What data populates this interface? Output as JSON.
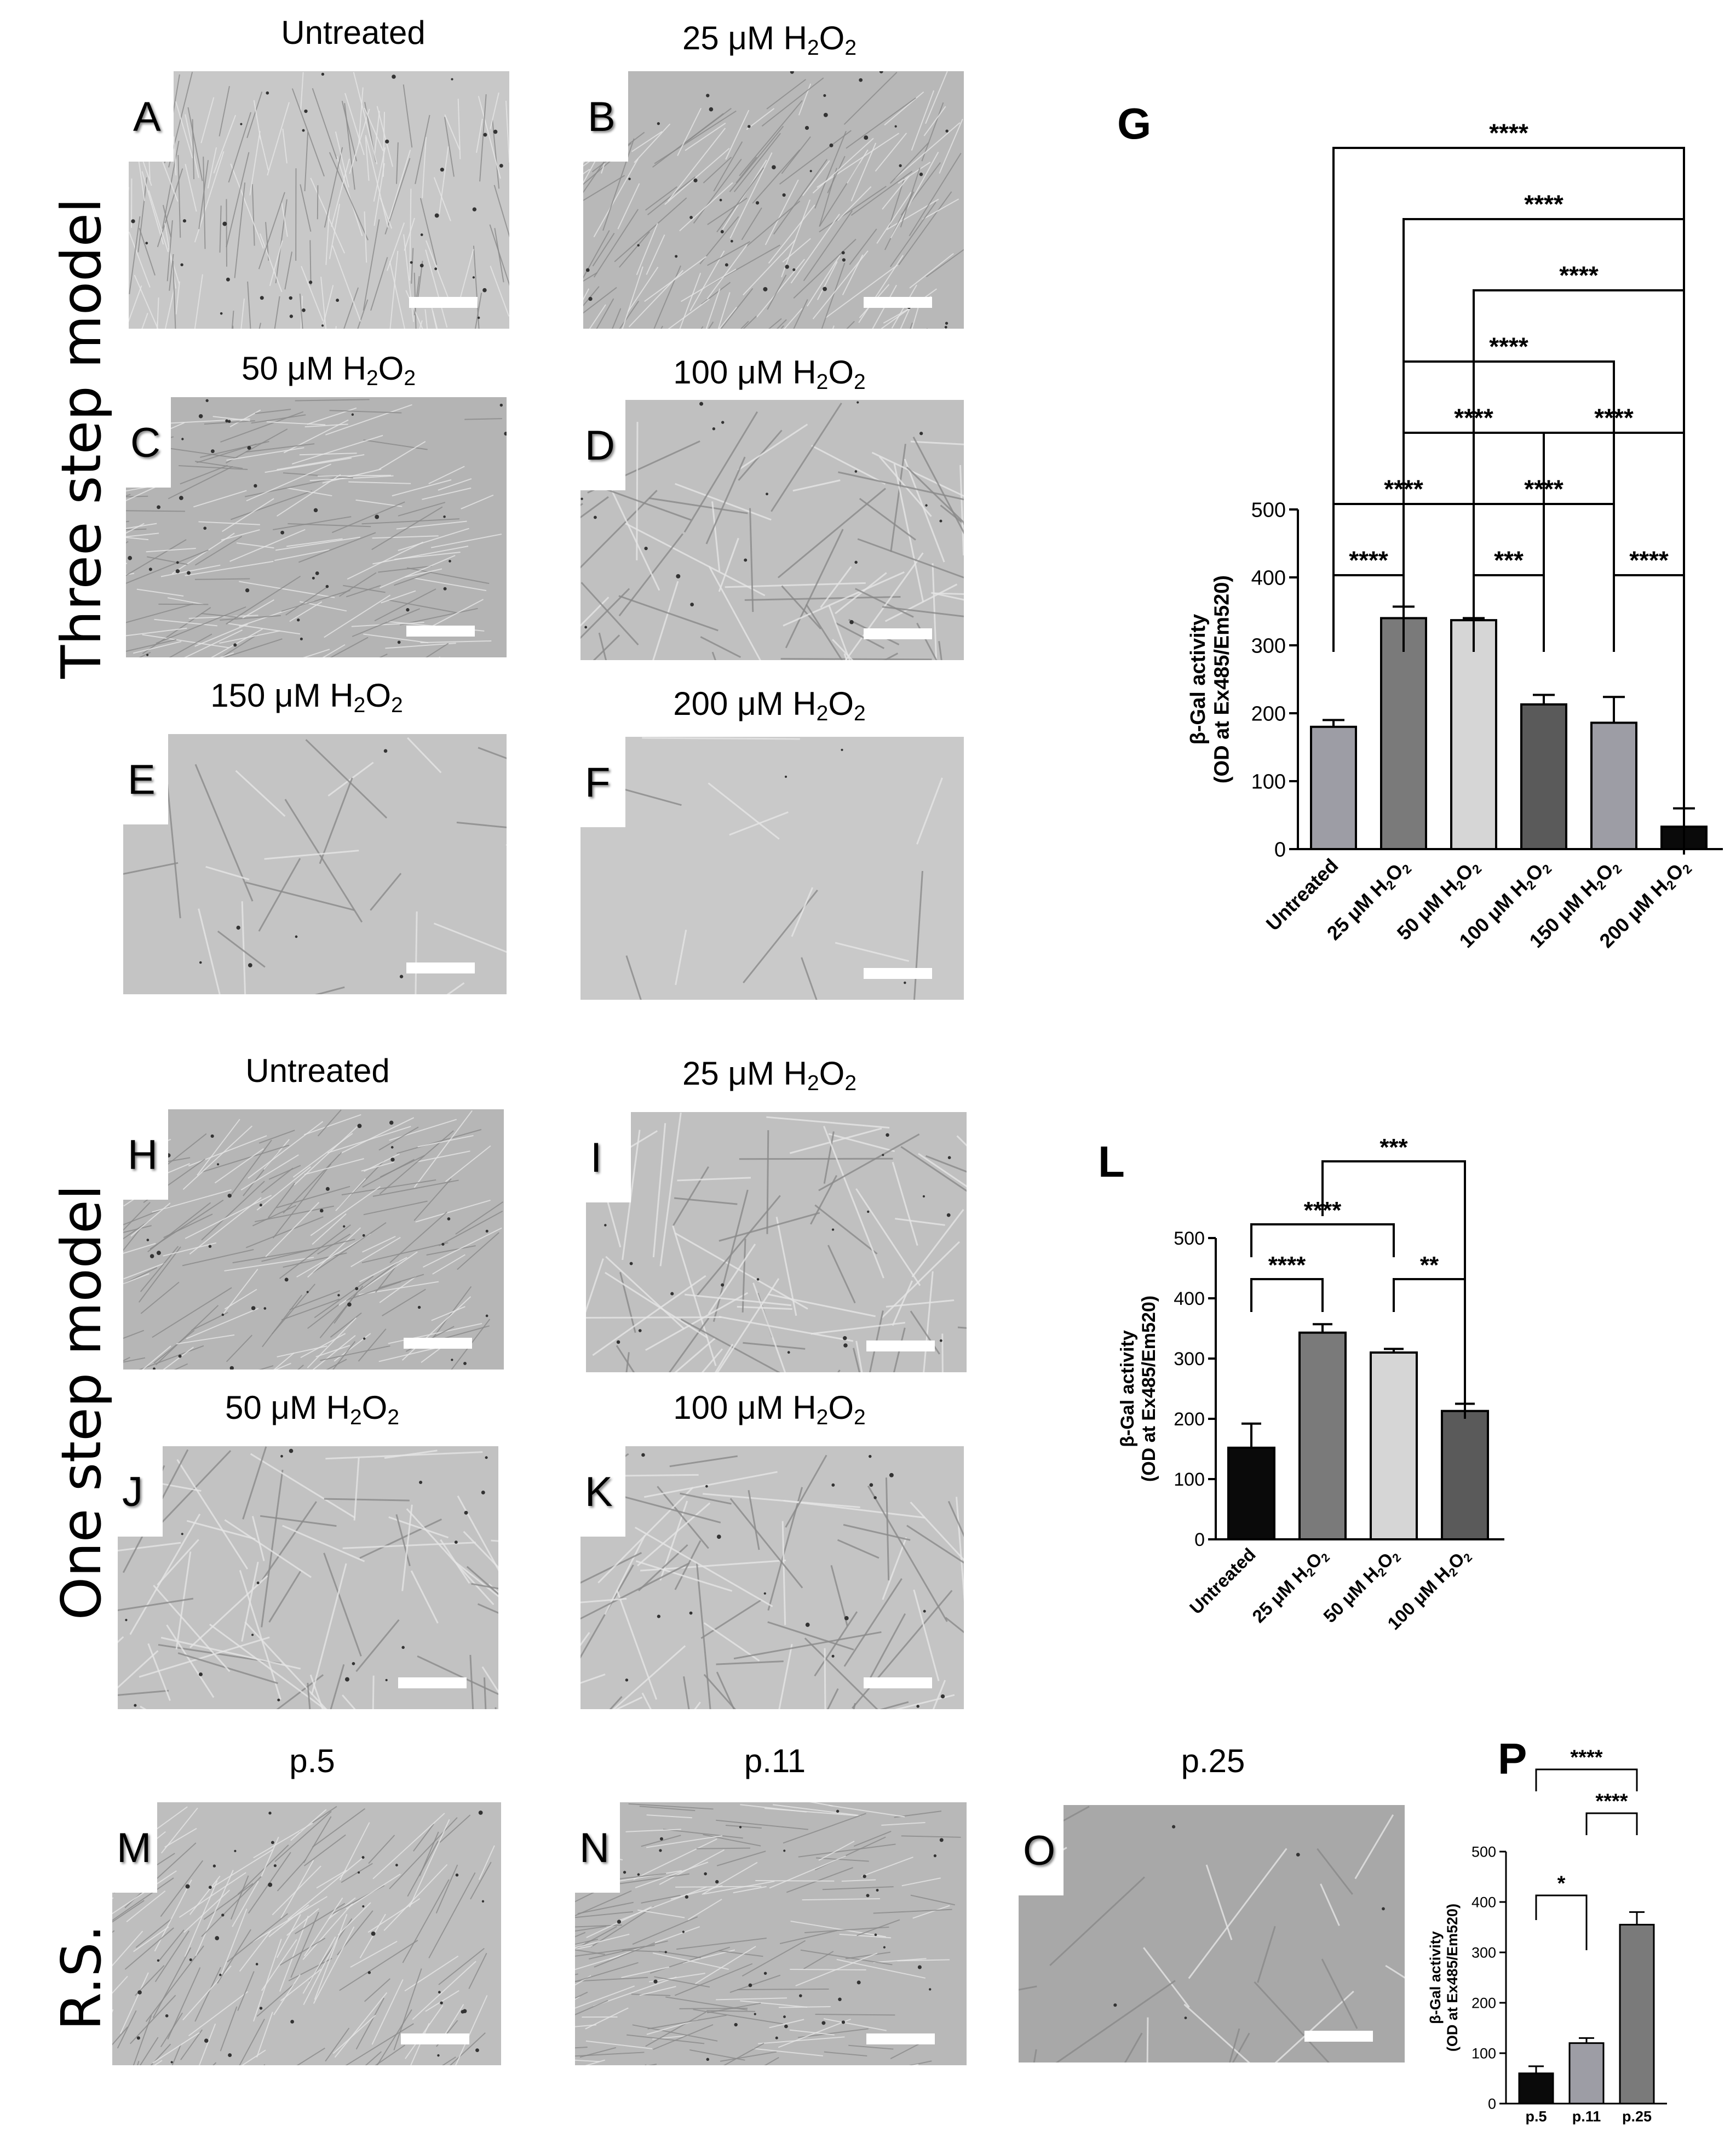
{
  "sections": {
    "three_step": "Three step model",
    "one_step": "One step model",
    "rs": "R.S."
  },
  "panels": [
    {
      "id": "A",
      "caption": "Untreated",
      "caption_sub": "",
      "caption_end": "",
      "tone": "#c8c8c8",
      "pattern": "dense"
    },
    {
      "id": "B",
      "caption": "25 μM H",
      "caption_sub": "2",
      "caption_end": "O2",
      "tone": "#b8b8b8",
      "pattern": "dense"
    },
    {
      "id": "C",
      "caption": "50 μM H",
      "caption_sub": "2",
      "caption_end": "O2",
      "tone": "#b4b4b4",
      "pattern": "dense"
    },
    {
      "id": "D",
      "caption": "100 μM H",
      "caption_sub": "2",
      "caption_end": "O2",
      "tone": "#c0c0c0",
      "pattern": "medium"
    },
    {
      "id": "E",
      "caption": "150 μM H",
      "caption_sub": "2",
      "caption_end": "O2",
      "tone": "#c4c4c4",
      "pattern": "sparse"
    },
    {
      "id": "F",
      "caption": "200 μM H",
      "caption_sub": "2",
      "caption_end": "O2",
      "tone": "#c9c9c9",
      "pattern": "very-sparse"
    },
    {
      "id": "H",
      "caption": "Untreated",
      "caption_sub": "",
      "caption_end": "",
      "tone": "#b6b6b6",
      "pattern": "dense"
    },
    {
      "id": "I",
      "caption": "25 μM H",
      "caption_sub": "2",
      "caption_end": "O2",
      "tone": "#c0c0c0",
      "pattern": "medium"
    },
    {
      "id": "J",
      "caption": "50 μM H",
      "caption_sub": "2",
      "caption_end": "O2",
      "tone": "#c2c2c2",
      "pattern": "medium"
    },
    {
      "id": "K",
      "caption": "100 μM H",
      "caption_sub": "2",
      "caption_end": "O2",
      "tone": "#c4c4c4",
      "pattern": "medium"
    },
    {
      "id": "M",
      "caption": "p.5",
      "caption_sub": "",
      "caption_end": "",
      "tone": "#bebebe",
      "pattern": "dense"
    },
    {
      "id": "N",
      "caption": "p.11",
      "caption_sub": "",
      "caption_end": "",
      "tone": "#b8b8b8",
      "pattern": "dense"
    },
    {
      "id": "O",
      "caption": "p.25",
      "caption_sub": "",
      "caption_end": "",
      "tone": "#a8a8a8",
      "pattern": "sparse"
    }
  ],
  "chart_data": [
    {
      "panel": "G",
      "type": "bar",
      "ylabel": "β-Gal activity",
      "ylabel2": "(OD at Ex485/Em520)",
      "ylim": [
        0,
        500
      ],
      "yticks": [
        0,
        100,
        200,
        300,
        400,
        500
      ],
      "categories": [
        "Untreated",
        "25 μM H2O2",
        "50 μM H2O2",
        "100 μM H2O2",
        "150 μM H2O2",
        "200 μM H2O2"
      ],
      "values": [
        180,
        340,
        337,
        213,
        186,
        33
      ],
      "errors": [
        10,
        17,
        3,
        14,
        38,
        27
      ],
      "colors": [
        "#9d9da5",
        "#7a7a7a",
        "#d6d6d6",
        "#5a5a5a",
        "#9d9da5",
        "#0a0a0a"
      ],
      "comparisons": [
        {
          "a": 0,
          "b": 1,
          "label": "****"
        },
        {
          "a": 2,
          "b": 3,
          "label": "***"
        },
        {
          "a": 4,
          "b": 5,
          "label": "****"
        },
        {
          "a": 0,
          "b": 2,
          "label": "****"
        },
        {
          "a": 2,
          "b": 4,
          "label": "****"
        },
        {
          "a": 1,
          "b": 3,
          "label": "****"
        },
        {
          "a": 3,
          "b": 5,
          "label": "****"
        },
        {
          "a": 1,
          "b": 4,
          "label": "****"
        },
        {
          "a": 2,
          "b": 5,
          "label": "****"
        },
        {
          "a": 1,
          "b": 5,
          "label": "****"
        },
        {
          "a": 0,
          "b": 5,
          "label": "****"
        }
      ]
    },
    {
      "panel": "L",
      "type": "bar",
      "ylabel": "β-Gal activity",
      "ylabel2": "(OD at Ex485/Em520)",
      "ylim": [
        0,
        500
      ],
      "yticks": [
        0,
        100,
        200,
        300,
        400,
        500
      ],
      "categories": [
        "Untreated",
        "25 μM H2O2",
        "50 μM H2O2",
        "100 μM H2O2"
      ],
      "values": [
        152,
        343,
        310,
        213
      ],
      "errors": [
        40,
        14,
        6,
        12
      ],
      "colors": [
        "#0a0a0a",
        "#7a7a7a",
        "#d6d6d6",
        "#5a5a5a"
      ],
      "comparisons": [
        {
          "a": 0,
          "b": 1,
          "label": "****"
        },
        {
          "a": 2,
          "b": 3,
          "label": "**"
        },
        {
          "a": 0,
          "b": 2,
          "label": "****"
        },
        {
          "a": 1,
          "b": 3,
          "label": "***"
        }
      ]
    },
    {
      "panel": "P",
      "type": "bar",
      "ylabel": "β-Gal activity",
      "ylabel2": "(OD at Ex485/Em520)",
      "ylim": [
        0,
        500
      ],
      "yticks": [
        0,
        100,
        200,
        300,
        400,
        500
      ],
      "categories": [
        "p.5",
        "p.11",
        "p.25"
      ],
      "values": [
        60,
        120,
        355
      ],
      "errors": [
        14,
        10,
        25
      ],
      "colors": [
        "#0a0a0a",
        "#9d9da5",
        "#7a7a7a"
      ],
      "comparisons": [
        {
          "a": 0,
          "b": 1,
          "label": "*"
        },
        {
          "a": 1,
          "b": 2,
          "label": "****"
        },
        {
          "a": 0,
          "b": 2,
          "label": "****"
        }
      ]
    }
  ]
}
